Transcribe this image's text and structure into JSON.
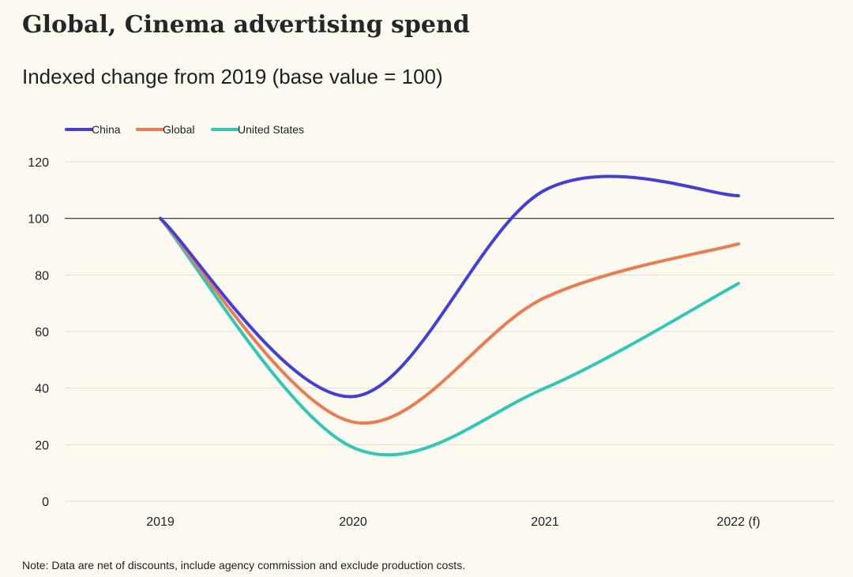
{
  "title": "Global, Cinema advertising spend",
  "subtitle": "Indexed change from 2019 (base value = 100)",
  "note": "Note: Data are net of discounts, include agency commission and exclude production costs.",
  "chart_data": {
    "type": "line",
    "categories": [
      "2019",
      "2020",
      "2021",
      "2022 (f)"
    ],
    "series": [
      {
        "name": "China",
        "color": "#3f3fe0",
        "values": [
          100,
          37,
          110,
          108
        ]
      },
      {
        "name": "Global",
        "color": "#f07a50",
        "values": [
          100,
          28,
          72,
          91
        ]
      },
      {
        "name": "United States",
        "color": "#2cc9b4",
        "values": [
          100,
          19,
          40,
          77
        ]
      }
    ],
    "ylim": [
      0,
      120
    ],
    "yticks": [
      0,
      20,
      40,
      60,
      80,
      100,
      120
    ],
    "reference_line": 100,
    "grid": true,
    "legend_position": "top-left"
  }
}
